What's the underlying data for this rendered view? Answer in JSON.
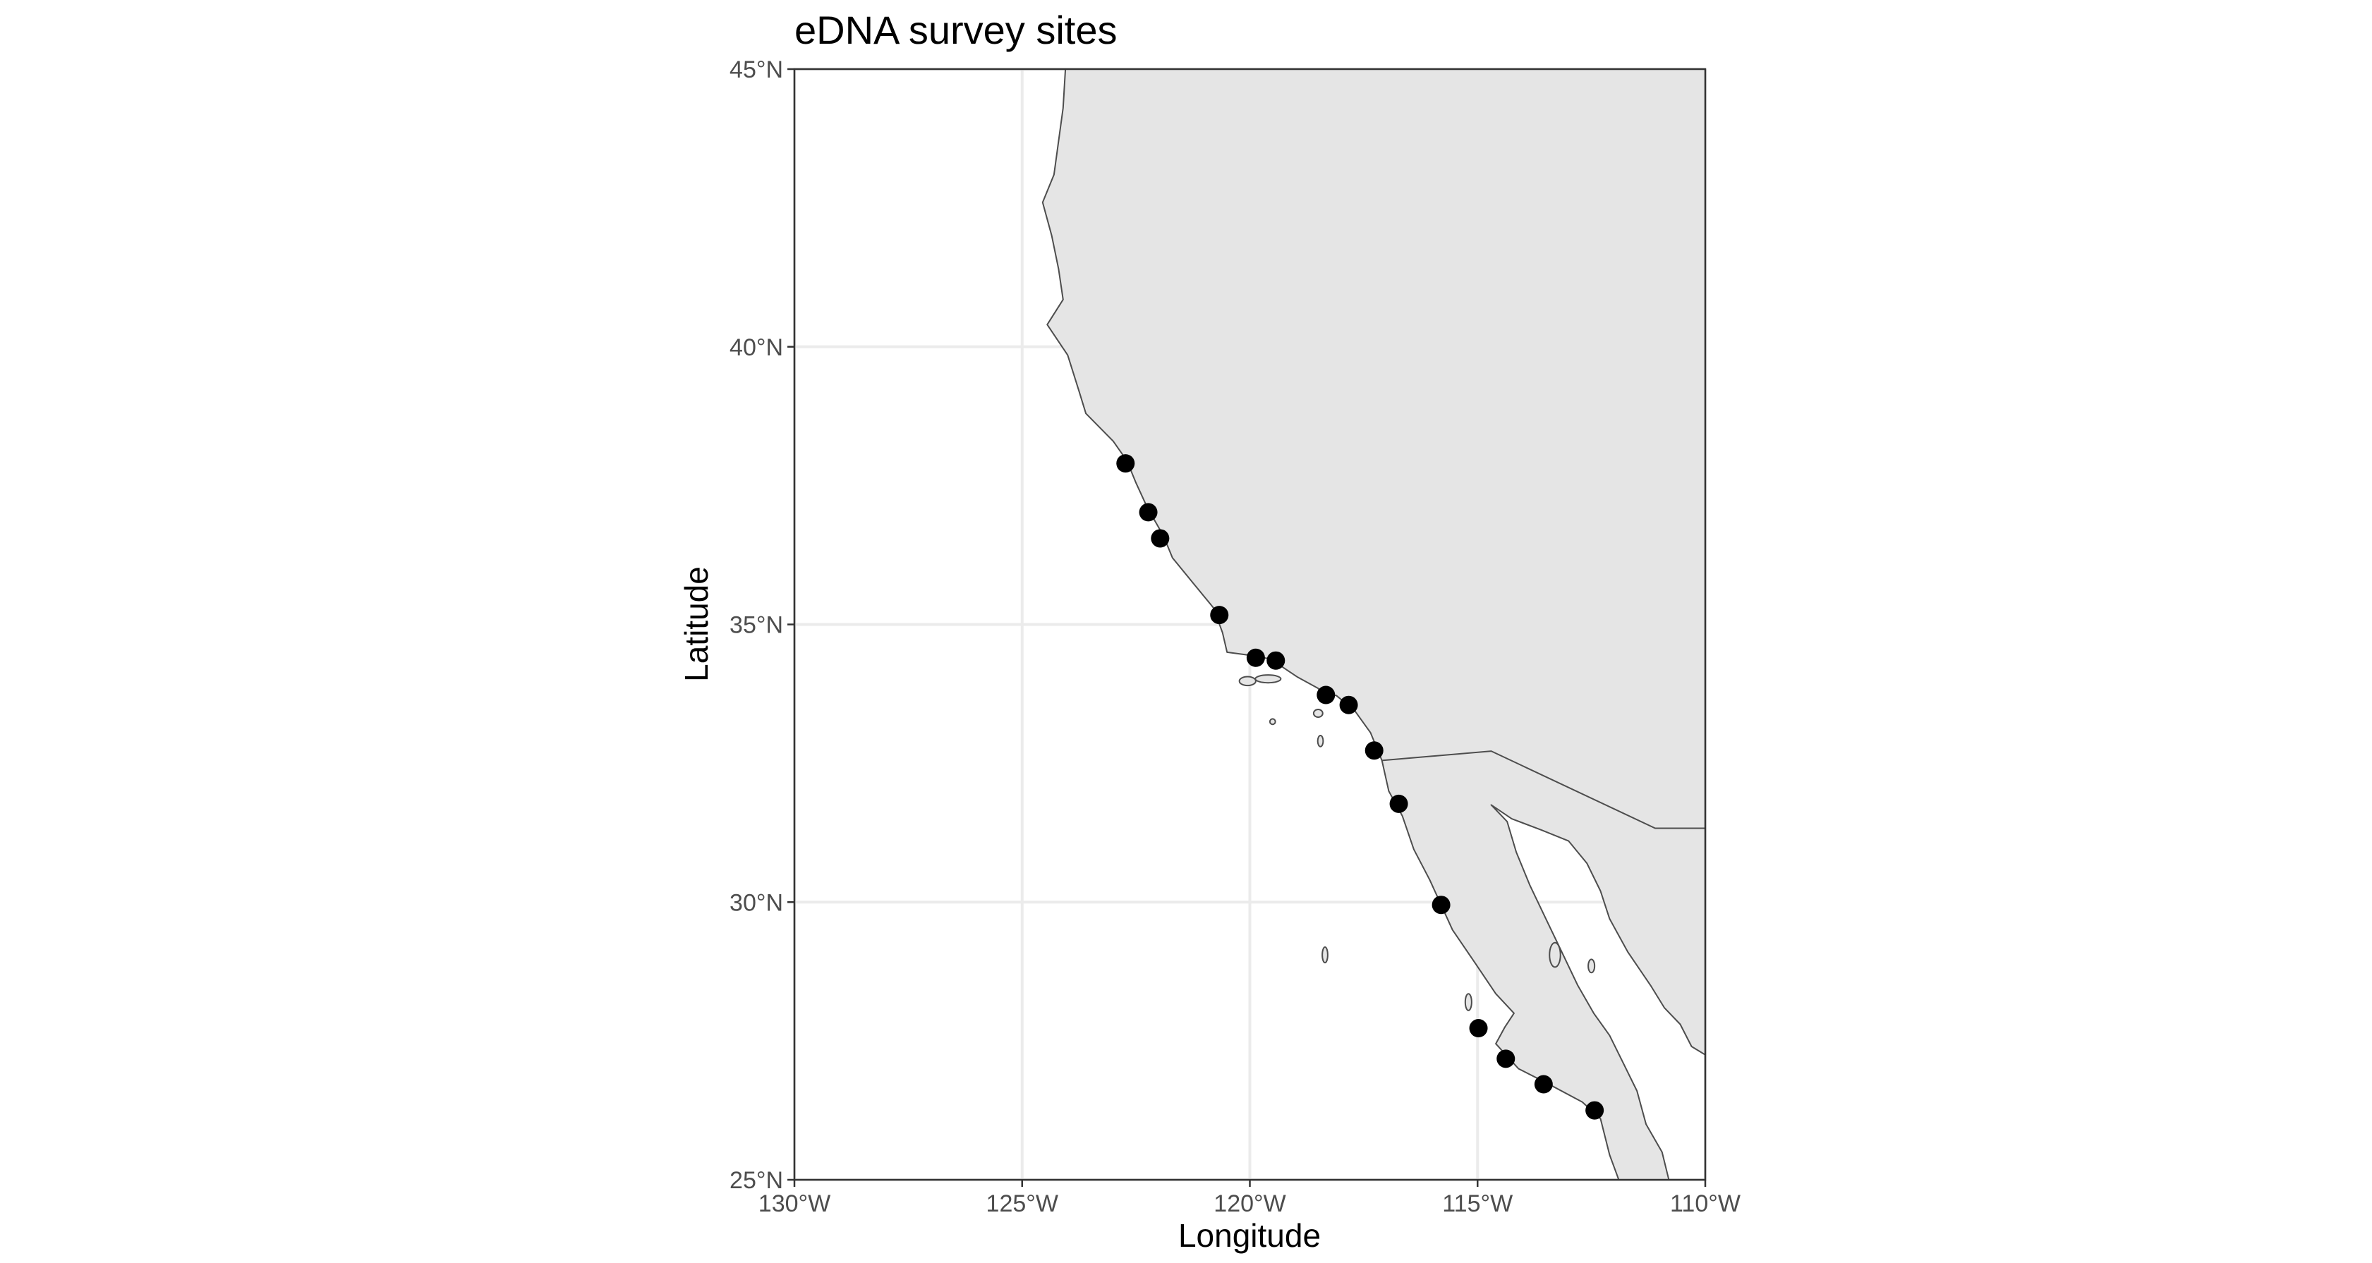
{
  "title": "eDNA survey sites",
  "x_axis": {
    "label": "Longitude",
    "range": [
      -130,
      -110
    ],
    "ticks": [
      {
        "value": -130,
        "label": "130°W"
      },
      {
        "value": -125,
        "label": "125°W"
      },
      {
        "value": -120,
        "label": "120°W"
      },
      {
        "value": -115,
        "label": "115°W"
      },
      {
        "value": -110,
        "label": "110°W"
      }
    ]
  },
  "y_axis": {
    "label": "Latitude",
    "range": [
      25,
      45
    ],
    "ticks": [
      {
        "value": 25,
        "label": "25°N"
      },
      {
        "value": 30,
        "label": "30°N"
      },
      {
        "value": 35,
        "label": "35°N"
      },
      {
        "value": 40,
        "label": "40°N"
      },
      {
        "value": 45,
        "label": "45°N"
      }
    ]
  },
  "grid": true,
  "colors": {
    "land": "#e5e5e5",
    "coastline": "#4d4d4d",
    "points": "#000000",
    "grid": "#ebebeb",
    "panel_border": "#333333"
  },
  "sites": [
    {
      "lon": -122.73,
      "lat": 37.9
    },
    {
      "lon": -122.23,
      "lat": 37.02
    },
    {
      "lon": -121.97,
      "lat": 36.55
    },
    {
      "lon": -120.67,
      "lat": 35.17
    },
    {
      "lon": -119.87,
      "lat": 34.4
    },
    {
      "lon": -119.43,
      "lat": 34.35
    },
    {
      "lon": -118.33,
      "lat": 33.73
    },
    {
      "lon": -117.83,
      "lat": 33.55
    },
    {
      "lon": -117.27,
      "lat": 32.73
    },
    {
      "lon": -116.73,
      "lat": 31.77
    },
    {
      "lon": -115.8,
      "lat": 29.95
    },
    {
      "lon": -114.98,
      "lat": 27.73
    },
    {
      "lon": -114.38,
      "lat": 27.18
    },
    {
      "lon": -113.55,
      "lat": 26.72
    },
    {
      "lon": -112.43,
      "lat": 26.25
    }
  ],
  "mainland": [
    [
      -124.05,
      45.0
    ],
    [
      -124.1,
      44.3
    ],
    [
      -124.3,
      43.1
    ],
    [
      -124.55,
      42.6
    ],
    [
      -124.35,
      42.0
    ],
    [
      -124.2,
      41.4
    ],
    [
      -124.1,
      40.85
    ],
    [
      -124.45,
      40.4
    ],
    [
      -124.0,
      39.85
    ],
    [
      -123.75,
      39.2
    ],
    [
      -123.6,
      38.8
    ],
    [
      -123.0,
      38.3
    ],
    [
      -122.7,
      37.95
    ],
    [
      -122.5,
      37.55
    ],
    [
      -122.25,
      37.1
    ],
    [
      -121.9,
      36.6
    ],
    [
      -121.7,
      36.2
    ],
    [
      -121.2,
      35.7
    ],
    [
      -120.8,
      35.3
    ],
    [
      -120.6,
      34.85
    ],
    [
      -120.5,
      34.5
    ],
    [
      -120.05,
      34.45
    ],
    [
      -119.55,
      34.38
    ],
    [
      -118.95,
      34.05
    ],
    [
      -118.5,
      33.85
    ],
    [
      -118.4,
      33.75
    ],
    [
      -118.1,
      33.72
    ],
    [
      -117.7,
      33.45
    ],
    [
      -117.35,
      33.05
    ],
    [
      -117.1,
      32.55
    ],
    [
      -116.95,
      32.0
    ],
    [
      -116.65,
      31.55
    ],
    [
      -116.4,
      30.95
    ],
    [
      -116.05,
      30.4
    ],
    [
      -115.8,
      29.95
    ],
    [
      -115.55,
      29.5
    ],
    [
      -115.05,
      28.9
    ],
    [
      -114.6,
      28.35
    ],
    [
      -114.2,
      28.0
    ],
    [
      -114.4,
      27.75
    ],
    [
      -114.6,
      27.45
    ],
    [
      -114.1,
      27.0
    ],
    [
      -113.5,
      26.75
    ],
    [
      -112.7,
      26.4
    ],
    [
      -112.3,
      26.1
    ],
    [
      -112.1,
      25.45
    ],
    [
      -111.9,
      25.0
    ],
    [
      -110.8,
      25.0
    ],
    [
      -110.95,
      25.5
    ],
    [
      -111.3,
      26.0
    ],
    [
      -111.5,
      26.6
    ],
    [
      -111.8,
      27.1
    ],
    [
      -112.1,
      27.6
    ],
    [
      -112.45,
      28.0
    ],
    [
      -112.8,
      28.5
    ],
    [
      -113.15,
      29.1
    ],
    [
      -113.5,
      29.7
    ],
    [
      -113.85,
      30.3
    ],
    [
      -114.15,
      30.9
    ],
    [
      -114.35,
      31.45
    ],
    [
      -114.7,
      31.75
    ],
    [
      -114.25,
      31.5
    ],
    [
      -113.6,
      31.3
    ],
    [
      -113.0,
      31.1
    ],
    [
      -112.6,
      30.7
    ],
    [
      -112.3,
      30.2
    ],
    [
      -112.1,
      29.7
    ],
    [
      -111.7,
      29.1
    ],
    [
      -111.2,
      28.5
    ],
    [
      -110.9,
      28.1
    ],
    [
      -110.55,
      27.8
    ],
    [
      -110.3,
      27.4
    ],
    [
      -110.0,
      27.25
    ],
    [
      -110.0,
      45.0
    ]
  ],
  "border": [
    [
      -117.1,
      32.55
    ],
    [
      -114.7,
      32.72
    ],
    [
      -111.1,
      31.33
    ],
    [
      -110.0,
      31.33
    ]
  ],
  "islands": [
    [
      -119.6,
      34.02,
      0.28,
      0.07
    ],
    [
      -120.05,
      33.98,
      0.18,
      0.08
    ],
    [
      -118.5,
      33.4,
      0.1,
      0.07
    ],
    [
      -118.45,
      32.9,
      0.06,
      0.1
    ],
    [
      -119.5,
      33.25,
      0.06,
      0.05
    ],
    [
      -118.35,
      29.05,
      0.06,
      0.14
    ],
    [
      -115.2,
      28.2,
      0.07,
      0.15
    ],
    [
      -113.3,
      29.05,
      0.12,
      0.22
    ],
    [
      -112.5,
      28.85,
      0.07,
      0.12
    ]
  ]
}
